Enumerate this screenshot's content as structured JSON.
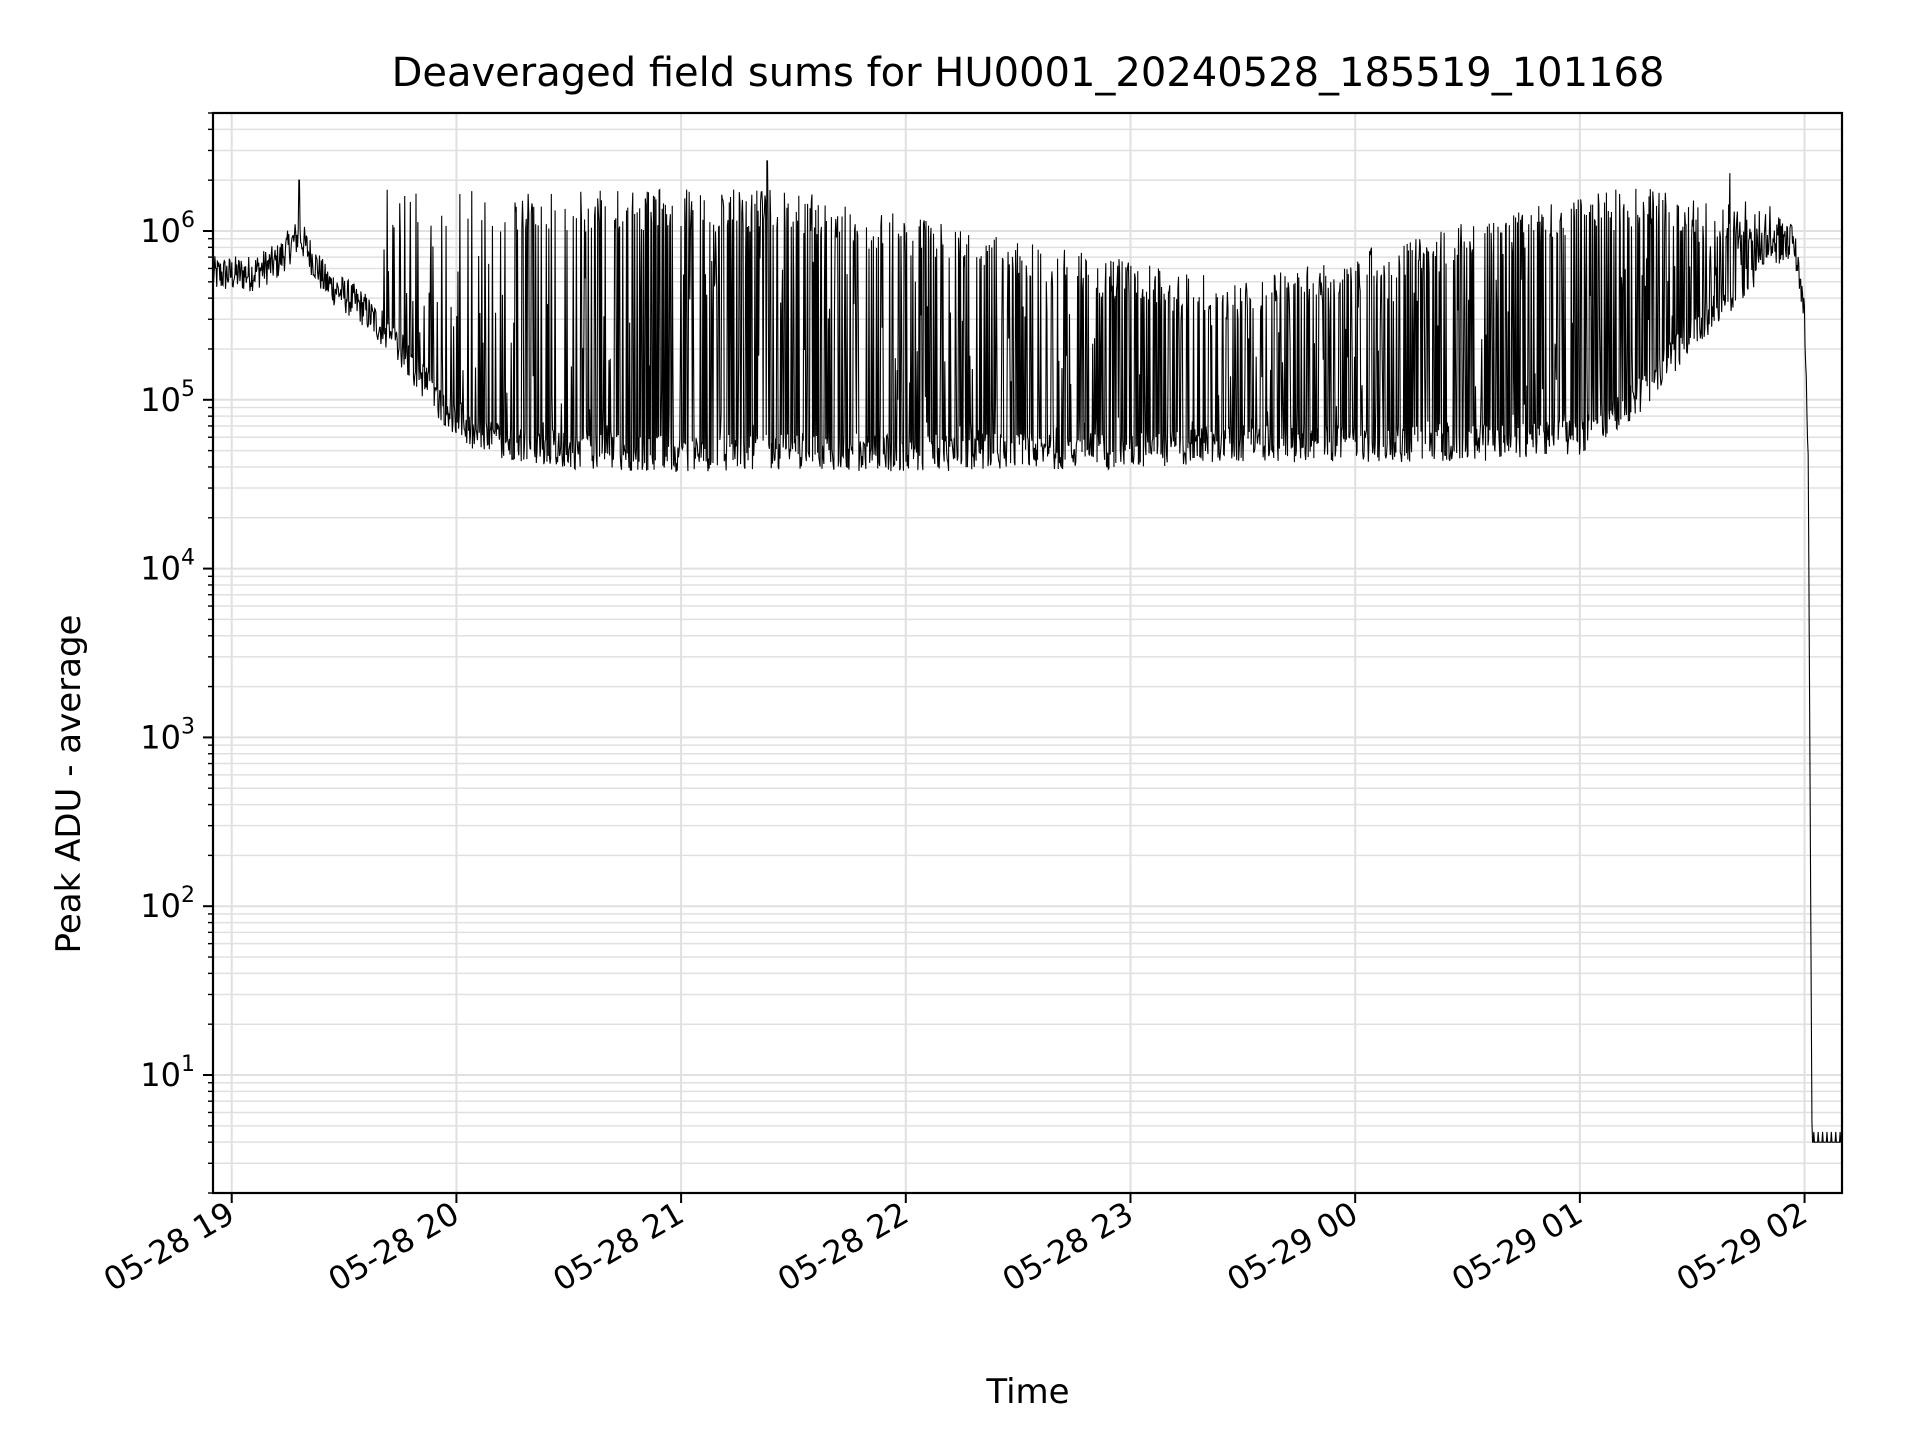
{
  "chart_data": {
    "type": "line",
    "title": "Deaveraged field sums for HU0001_20240528_185519_101168",
    "xlabel": "Time",
    "ylabel": "Peak ADU - average",
    "yscale": "log",
    "ylim": [
      2,
      5000000
    ],
    "xlim": [
      "2024-05-28 18:55",
      "2024-05-29 02:10"
    ],
    "grid": true,
    "line_color": "#000000",
    "grid_color": "#e0e0e0",
    "x_ticks": [
      {
        "t": "2024-05-28 19:00",
        "label": "05-28 19"
      },
      {
        "t": "2024-05-28 20:00",
        "label": "05-28 20"
      },
      {
        "t": "2024-05-28 21:00",
        "label": "05-28 21"
      },
      {
        "t": "2024-05-28 22:00",
        "label": "05-28 22"
      },
      {
        "t": "2024-05-28 23:00",
        "label": "05-28 23"
      },
      {
        "t": "2024-05-29 00:00",
        "label": "05-29 00"
      },
      {
        "t": "2024-05-29 01:00",
        "label": "05-29 01"
      },
      {
        "t": "2024-05-29 02:00",
        "label": "05-29 02"
      }
    ],
    "y_ticks": [
      {
        "value": 10,
        "base": "10",
        "exp": "1"
      },
      {
        "value": 100,
        "base": "10",
        "exp": "2"
      },
      {
        "value": 1000,
        "base": "10",
        "exp": "3"
      },
      {
        "value": 10000,
        "base": "10",
        "exp": "4"
      },
      {
        "value": 100000,
        "base": "10",
        "exp": "5"
      },
      {
        "value": 1000000,
        "base": "10",
        "exp": "6"
      }
    ],
    "series": [
      {
        "baseline": [
          [
            "2024-05-28 18:55",
            550000
          ],
          [
            "2024-05-28 19:05",
            560000
          ],
          [
            "2024-05-28 19:12",
            650000
          ],
          [
            "2024-05-28 19:18",
            950000
          ],
          [
            "2024-05-28 19:25",
            500000
          ],
          [
            "2024-05-28 19:35",
            350000
          ],
          [
            "2024-05-28 19:45",
            200000
          ],
          [
            "2024-05-28 19:55",
            100000
          ],
          [
            "2024-05-28 20:05",
            60000
          ],
          [
            "2024-05-28 20:30",
            50000
          ],
          [
            "2024-05-28 21:00",
            48000
          ],
          [
            "2024-05-28 21:30",
            50000
          ],
          [
            "2024-05-28 22:00",
            48000
          ],
          [
            "2024-05-28 22:30",
            50000
          ],
          [
            "2024-05-28 23:00",
            50000
          ],
          [
            "2024-05-28 23:30",
            55000
          ],
          [
            "2024-05-29 00:00",
            55000
          ],
          [
            "2024-05-29 00:30",
            55000
          ],
          [
            "2024-05-29 01:00",
            60000
          ],
          [
            "2024-05-29 01:15",
            100000
          ],
          [
            "2024-05-29 01:30",
            250000
          ],
          [
            "2024-05-29 01:45",
            550000
          ],
          [
            "2024-05-29 01:57",
            900000
          ],
          [
            "2024-05-29 02:00",
            300000
          ],
          [
            "2024-05-29 02:01",
            40000
          ],
          [
            "2024-05-29 02:02",
            4
          ],
          [
            "2024-05-29 02:10",
            4
          ]
        ],
        "spike_envelope": [
          [
            "2024-05-28 20:15",
            1400000
          ],
          [
            "2024-05-28 21:30",
            1400000
          ],
          [
            "2024-05-28 22:30",
            700000
          ],
          [
            "2024-05-28 23:30",
            400000
          ],
          [
            "2024-05-29 00:30",
            900000
          ],
          [
            "2024-05-29 01:15",
            1500000
          ],
          [
            "2024-05-29 01:40",
            1200000
          ]
        ],
        "notable_peaks": [
          [
            "2024-05-28 19:18",
            2000000
          ],
          [
            "2024-05-28 21:23",
            2600000
          ],
          [
            "2024-05-29 01:40",
            2200000
          ]
        ]
      }
    ]
  }
}
